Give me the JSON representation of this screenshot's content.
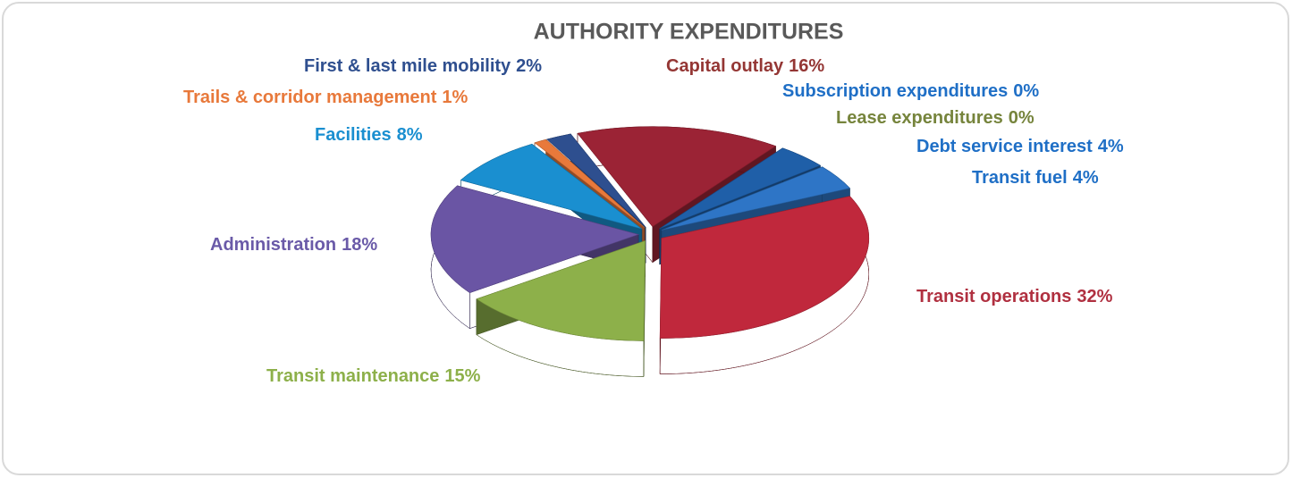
{
  "chart_data": {
    "type": "pie3d",
    "title": "AUTHORITY EXPENDITURES",
    "categories": [
      "Capital outlay",
      "Subscription expenditures",
      "Lease expenditures",
      "Debt service interest",
      "Transit fuel",
      "Transit operations",
      "Transit maintenance",
      "Administration",
      "Facilities",
      "Trails & corridor management",
      "First & last mile mobility"
    ],
    "values": [
      16,
      0,
      0,
      4,
      4,
      32,
      15,
      18,
      8,
      1,
      2
    ],
    "value_labels": [
      "16%",
      "0%",
      "0%",
      "4%",
      "4%",
      "32%",
      "15%",
      "18%",
      "8%",
      "1%",
      "2%"
    ],
    "colors": [
      "#9b2335",
      "#1f6fc6",
      "#76843c",
      "#1f5fa8",
      "#2e75c6",
      "#c0283c",
      "#8db04a",
      "#6a55a4",
      "#1a8fd0",
      "#e8793b",
      "#2e4f8f"
    ],
    "label_colors": [
      "#943634",
      "#1f6fc6",
      "#76843c",
      "#1f6fc6",
      "#1f6fc6",
      "#b03040",
      "#8db04a",
      "#6a5aa8",
      "#1a8fd0",
      "#e8793b",
      "#2f4f8f"
    ]
  }
}
